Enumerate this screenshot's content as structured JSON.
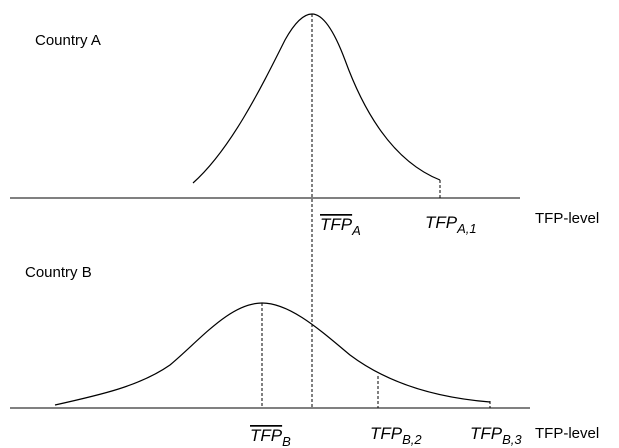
{
  "panels": [
    {
      "title": "Country A",
      "axis_label": "TFP-level",
      "labels": [
        {
          "main": "TFP",
          "sub": "A"
        },
        {
          "main": "TFP",
          "sub": "A,1"
        }
      ]
    },
    {
      "title": "Country B",
      "axis_label": "TFP-level",
      "labels": [
        {
          "main": "TFP",
          "sub": "B"
        },
        {
          "main": "TFP",
          "sub": "B,2"
        },
        {
          "main": "TFP",
          "sub": "B,3"
        }
      ]
    }
  ]
}
